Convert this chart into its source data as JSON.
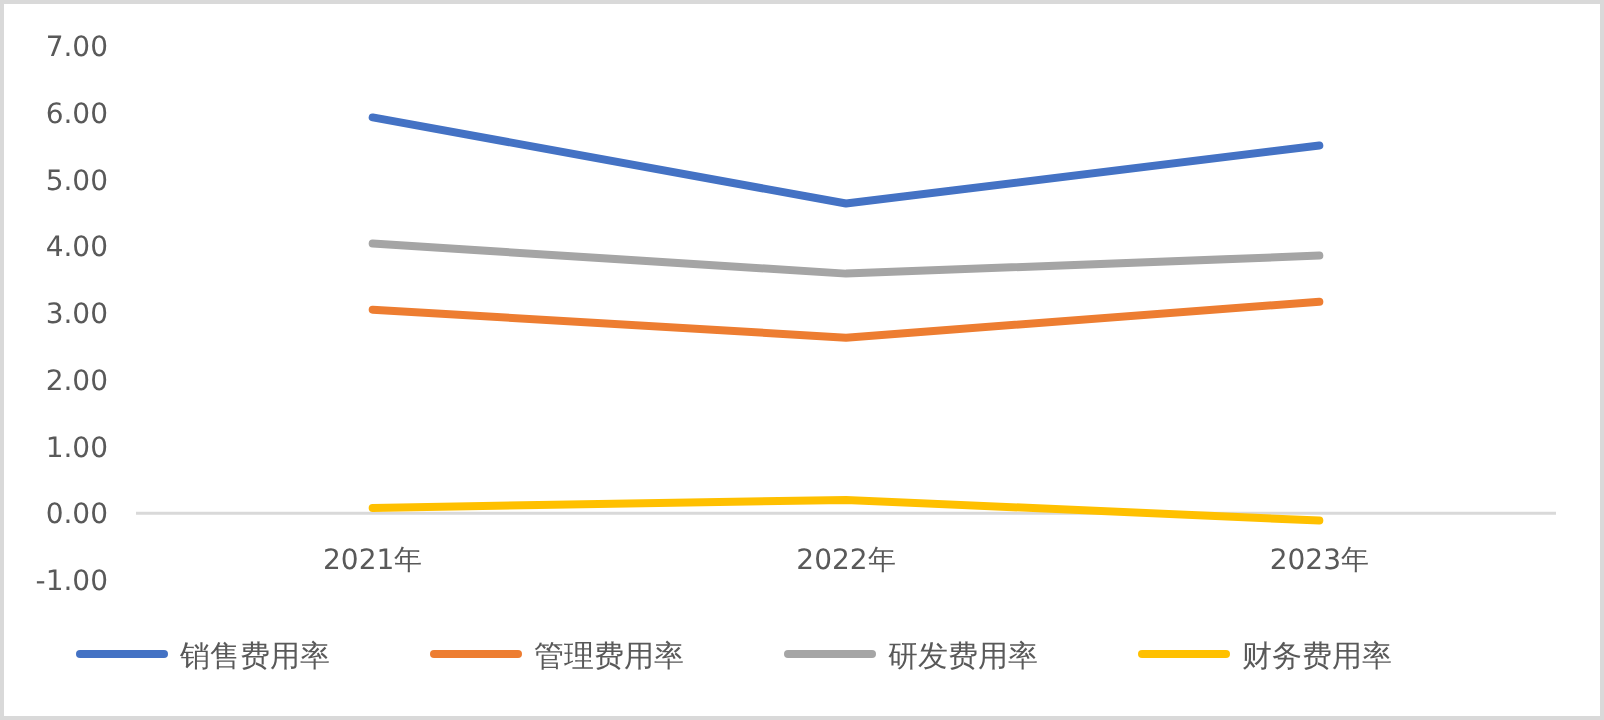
{
  "chart_data": {
    "type": "line",
    "categories": [
      "2021年",
      "2022年",
      "2023年"
    ],
    "series": [
      {
        "name": "销售费用率",
        "color": "#4472c4",
        "values": [
          5.93,
          4.64,
          5.51
        ]
      },
      {
        "name": "管理费用率",
        "color": "#ed7d31",
        "values": [
          3.05,
          2.63,
          3.17
        ]
      },
      {
        "name": "研发费用率",
        "color": "#a5a5a5",
        "values": [
          4.04,
          3.59,
          3.86
        ]
      },
      {
        "name": "财务费用率",
        "color": "#ffc000",
        "values": [
          0.08,
          0.2,
          -0.11
        ]
      }
    ],
    "ylim": [
      -1,
      7
    ],
    "yticks": [
      {
        "value": -1,
        "label": "-1.00"
      },
      {
        "value": 0,
        "label": "0.00"
      },
      {
        "value": 1,
        "label": "1.00"
      },
      {
        "value": 2,
        "label": "2.00"
      },
      {
        "value": 3,
        "label": "3.00"
      },
      {
        "value": 4,
        "label": "4.00"
      },
      {
        "value": 5,
        "label": "5.00"
      },
      {
        "value": 6,
        "label": "6.00"
      },
      {
        "value": 7,
        "label": "7.00"
      }
    ],
    "legend": "bottom"
  }
}
